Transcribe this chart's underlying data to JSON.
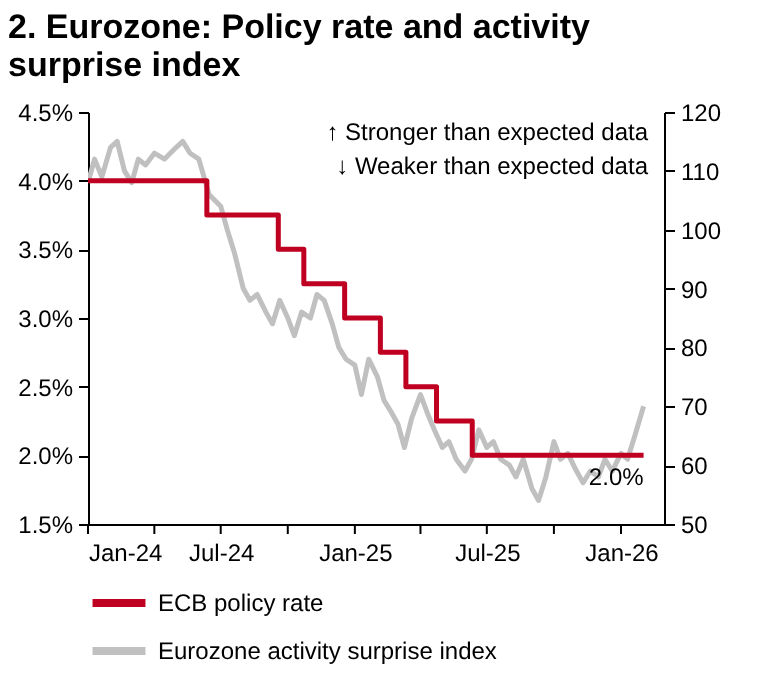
{
  "chart_data": {
    "type": "line",
    "title": "2. Eurozone: Policy rate and activity surprise index",
    "xlim": [
      "2024-01-01",
      "2026-03-01"
    ],
    "xticks": [
      {
        "value": "2024-01-01",
        "label": "Jan-24"
      },
      {
        "value": "2024-04-01",
        "label": null
      },
      {
        "value": "2024-07-01",
        "label": "Jul-24"
      },
      {
        "value": "2024-10-01",
        "label": null
      },
      {
        "value": "2025-01-01",
        "label": "Jan-25"
      },
      {
        "value": "2025-04-01",
        "label": null
      },
      {
        "value": "2025-07-01",
        "label": "Jul-25"
      },
      {
        "value": "2025-10-01",
        "label": null
      },
      {
        "value": "2026-01-01",
        "label": "Jan-26"
      }
    ],
    "ylim": [
      1.5,
      4.5
    ],
    "yticks": [
      {
        "value": 1.5,
        "label": "1.5%"
      },
      {
        "value": 2.0,
        "label": "2.0%"
      },
      {
        "value": 2.5,
        "label": "2.5%"
      },
      {
        "value": 3.0,
        "label": "3.0%"
      },
      {
        "value": 3.5,
        "label": "3.5%"
      },
      {
        "value": 4.0,
        "label": "4.0%"
      },
      {
        "value": 4.5,
        "label": "4.5%"
      }
    ],
    "y2lim": [
      50,
      120
    ],
    "y2ticks": [
      50,
      60,
      70,
      80,
      90,
      100,
      110,
      120
    ],
    "series": [
      {
        "name": "ECB policy rate",
        "type": "step",
        "color": "#c00020",
        "x": [
          "2024-01-01",
          "2024-06-12",
          "2024-09-18",
          "2024-10-23",
          "2024-12-18",
          "2025-02-05",
          "2025-03-12",
          "2025-04-23",
          "2025-06-11",
          "2026-02-01"
        ],
        "values": [
          4.0,
          3.75,
          3.5,
          3.25,
          3.0,
          2.75,
          2.5,
          2.25,
          2.0,
          2.0
        ]
      },
      {
        "name": "Eurozone activity surprise index",
        "type": "line",
        "axis": "y2",
        "color": "#c0c0c0",
        "x": [
          "2024-01-01",
          "2024-01-10",
          "2024-01-20",
          "2024-02-01",
          "2024-02-10",
          "2024-02-20",
          "2024-03-01",
          "2024-03-10",
          "2024-03-20",
          "2024-04-01",
          "2024-04-15",
          "2024-05-01",
          "2024-05-10",
          "2024-05-20",
          "2024-06-01",
          "2024-06-15",
          "2024-07-01",
          "2024-07-10",
          "2024-07-20",
          "2024-08-01",
          "2024-08-10",
          "2024-08-20",
          "2024-09-01",
          "2024-09-10",
          "2024-09-20",
          "2024-10-01",
          "2024-10-10",
          "2024-10-20",
          "2024-11-01",
          "2024-11-10",
          "2024-11-20",
          "2024-12-01",
          "2024-12-10",
          "2024-12-20",
          "2025-01-01",
          "2025-01-10",
          "2025-01-20",
          "2025-02-01",
          "2025-02-10",
          "2025-02-20",
          "2025-03-01",
          "2025-03-10",
          "2025-03-20",
          "2025-04-01",
          "2025-04-10",
          "2025-04-20",
          "2025-05-01",
          "2025-05-10",
          "2025-05-20",
          "2025-06-01",
          "2025-06-10",
          "2025-06-20",
          "2025-07-01",
          "2025-07-10",
          "2025-07-20",
          "2025-08-01",
          "2025-08-10",
          "2025-08-20",
          "2025-09-01",
          "2025-09-10",
          "2025-09-20",
          "2025-10-01",
          "2025-10-10",
          "2025-10-20",
          "2025-11-01",
          "2025-11-10",
          "2025-11-20",
          "2025-12-01",
          "2025-12-10",
          "2025-12-20",
          "2026-01-01",
          "2026-01-10",
          "2026-01-20",
          "2026-02-01"
        ],
        "values": [
          108,
          112,
          109,
          114,
          115,
          110,
          108,
          112,
          111,
          113,
          112,
          114,
          115,
          113,
          112,
          106,
          104,
          100,
          96,
          90,
          88,
          89,
          86,
          84,
          88,
          85,
          82,
          86,
          85,
          89,
          88,
          84,
          80,
          78,
          77,
          72,
          78,
          75,
          71,
          69,
          67,
          63,
          68,
          72,
          69,
          66,
          63,
          64,
          61,
          59,
          61,
          66,
          63,
          64,
          61,
          60,
          58,
          61,
          56,
          54,
          58,
          64,
          61,
          62,
          59,
          57,
          59,
          58,
          61,
          59,
          62,
          61,
          65,
          70
        ]
      }
    ],
    "annotations": [
      "↑ Stronger than expected data",
      "↓ Weaker than expected data",
      {
        "text": "2.0%",
        "x": "2026-02-01",
        "y": 2.0
      }
    ],
    "legend": "bottom",
    "grid": false,
    "marker": "none",
    "line_style": "solid"
  }
}
